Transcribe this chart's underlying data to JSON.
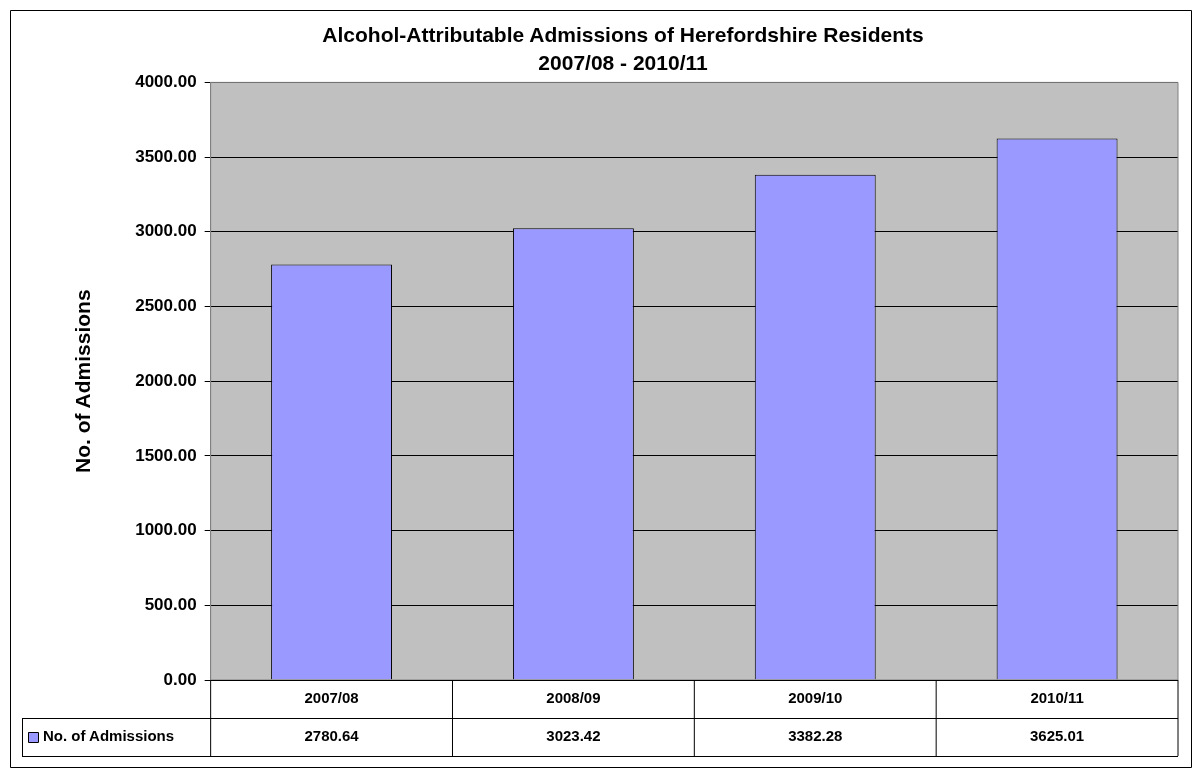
{
  "chart_data": {
    "type": "bar",
    "title": "Alcohol-Attributable Admissions of Herefordshire Residents",
    "subtitle": "2007/08 - 2010/11",
    "ylabel": "No. of Admissions",
    "categories": [
      "2007/08",
      "2008/09",
      "2009/10",
      "2010/11"
    ],
    "series": [
      {
        "name": "No. of Admissions",
        "color": "#9999ff",
        "values": [
          2780.64,
          3023.42,
          3382.28,
          3625.01
        ]
      }
    ],
    "ylim": [
      0,
      4000
    ],
    "yticks": [
      {
        "value": 0,
        "label": "0.00"
      },
      {
        "value": 500,
        "label": "500.00"
      },
      {
        "value": 1000,
        "label": "1000.00"
      },
      {
        "value": 1500,
        "label": "1500.00"
      },
      {
        "value": 2000,
        "label": "2000.00"
      },
      {
        "value": 2500,
        "label": "2500.00"
      },
      {
        "value": 3000,
        "label": "3000.00"
      },
      {
        "value": 3500,
        "label": "3500.00"
      },
      {
        "value": 4000,
        "label": "4000.00"
      }
    ],
    "grid": "y",
    "legend": "bottom left",
    "data_labels": true
  }
}
